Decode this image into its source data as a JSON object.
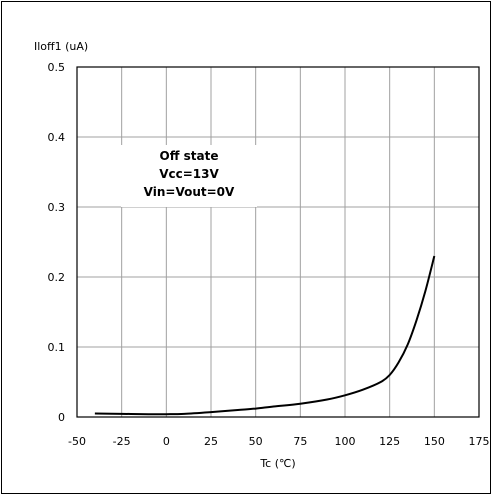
{
  "chart_data": {
    "type": "line",
    "ylabel": "Iloff1 (uA)",
    "xlabel": "Tc (℃)",
    "xlim": [
      -50,
      175
    ],
    "ylim": [
      0,
      0.5
    ],
    "x_ticks": [
      -50,
      -25,
      0,
      25,
      50,
      75,
      100,
      125,
      150,
      175
    ],
    "y_ticks": [
      0,
      0.1,
      0.2,
      0.3,
      0.4,
      0.5
    ],
    "x_tick_labels": [
      "-50",
      "-25",
      "0",
      "25",
      "50",
      "75",
      "100",
      "125",
      "150",
      "175"
    ],
    "y_tick_labels": [
      "0",
      "0.1",
      "0.2",
      "0.3",
      "0.4",
      "0.5"
    ],
    "grid": true,
    "annotation": [
      "Off state",
      "Vcc=13V",
      "Vin=Vout=0V"
    ],
    "series": [
      {
        "x": [
          -40,
          -25,
          -10,
          0,
          10,
          25,
          40,
          50,
          60,
          75,
          90,
          100,
          110,
          120,
          125,
          130,
          135,
          140,
          145,
          150
        ],
        "y": [
          0.005,
          0.0045,
          0.004,
          0.004,
          0.0045,
          0.007,
          0.01,
          0.012,
          0.015,
          0.019,
          0.025,
          0.031,
          0.039,
          0.05,
          0.06,
          0.078,
          0.103,
          0.138,
          0.18,
          0.23
        ]
      }
    ]
  },
  "colors": {
    "grid": "#a0a0a0",
    "line": "#000000",
    "background": "#ffffff"
  }
}
